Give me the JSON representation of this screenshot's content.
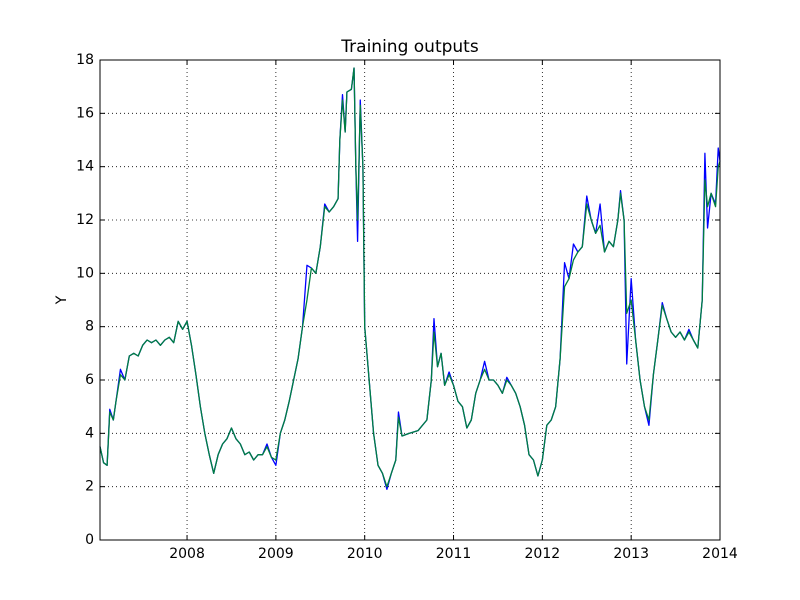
{
  "chart_data": {
    "type": "line",
    "title": "Training outputs",
    "ylabel": "Y",
    "x": [
      2007.02,
      2007.06,
      2007.1,
      2007.13,
      2007.17,
      2007.2,
      2007.25,
      2007.3,
      2007.35,
      2007.4,
      2007.45,
      2007.5,
      2007.55,
      2007.6,
      2007.65,
      2007.7,
      2007.75,
      2007.8,
      2007.85,
      2007.9,
      2007.95,
      2008.0,
      2008.05,
      2008.1,
      2008.15,
      2008.2,
      2008.25,
      2008.3,
      2008.35,
      2008.4,
      2008.45,
      2008.5,
      2008.55,
      2008.6,
      2008.65,
      2008.7,
      2008.75,
      2008.8,
      2008.85,
      2008.9,
      2008.95,
      2009.0,
      2009.05,
      2009.1,
      2009.15,
      2009.2,
      2009.25,
      2009.3,
      2009.35,
      2009.4,
      2009.45,
      2009.5,
      2009.55,
      2009.6,
      2009.65,
      2009.7,
      2009.72,
      2009.75,
      2009.78,
      2009.8,
      2009.85,
      2009.88,
      2009.9,
      2009.92,
      2009.95,
      2009.98,
      2010.0,
      2010.05,
      2010.1,
      2010.15,
      2010.2,
      2010.25,
      2010.3,
      2010.35,
      2010.38,
      2010.42,
      2010.5,
      2010.6,
      2010.7,
      2010.75,
      2010.78,
      2010.82,
      2010.86,
      2010.9,
      2010.95,
      2011.0,
      2011.05,
      2011.1,
      2011.15,
      2011.2,
      2011.25,
      2011.3,
      2011.35,
      2011.4,
      2011.45,
      2011.5,
      2011.55,
      2011.6,
      2011.65,
      2011.7,
      2011.75,
      2011.8,
      2011.85,
      2011.9,
      2011.95,
      2012.0,
      2012.05,
      2012.1,
      2012.15,
      2012.2,
      2012.25,
      2012.3,
      2012.35,
      2012.4,
      2012.45,
      2012.5,
      2012.55,
      2012.6,
      2012.65,
      2012.7,
      2012.75,
      2012.8,
      2012.85,
      2012.88,
      2012.92,
      2012.95,
      2013.0,
      2013.05,
      2013.1,
      2013.15,
      2013.2,
      2013.25,
      2013.3,
      2013.35,
      2013.4,
      2013.45,
      2013.5,
      2013.55,
      2013.6,
      2013.65,
      2013.7,
      2013.75,
      2013.8,
      2013.83,
      2013.86,
      2013.9,
      2013.95,
      2013.98,
      2014.0
    ],
    "series": [
      {
        "color": "#0000ff",
        "values": [
          3.5,
          2.9,
          2.8,
          4.9,
          4.5,
          5.2,
          6.4,
          6.0,
          6.9,
          7.0,
          6.9,
          7.3,
          7.5,
          7.4,
          7.5,
          7.3,
          7.5,
          7.6,
          7.4,
          8.2,
          7.9,
          8.2,
          7.3,
          6.2,
          5.0,
          4.0,
          3.2,
          2.5,
          3.2,
          3.6,
          3.8,
          4.2,
          3.8,
          3.6,
          3.2,
          3.3,
          3.0,
          3.2,
          3.2,
          3.6,
          3.1,
          2.8,
          4.0,
          4.5,
          5.2,
          6.0,
          6.8,
          8.0,
          10.3,
          10.2,
          10.0,
          11.0,
          12.6,
          12.3,
          12.5,
          12.8,
          15.0,
          16.7,
          15.3,
          16.8,
          16.9,
          17.7,
          14.0,
          11.2,
          16.5,
          14.0,
          8.0,
          6.0,
          4.0,
          2.8,
          2.5,
          1.9,
          2.5,
          3.0,
          4.8,
          3.9,
          4.0,
          4.1,
          4.5,
          6.0,
          8.3,
          6.5,
          7.0,
          5.8,
          6.3,
          5.8,
          5.2,
          5.0,
          4.2,
          4.5,
          5.5,
          6.0,
          6.7,
          6.0,
          6.0,
          5.8,
          5.5,
          6.1,
          5.8,
          5.5,
          5.0,
          4.3,
          3.2,
          3.0,
          2.4,
          3.0,
          4.3,
          4.5,
          5.0,
          6.8,
          10.4,
          9.8,
          11.1,
          10.8,
          11.0,
          12.9,
          12.0,
          11.5,
          12.6,
          10.8,
          11.2,
          11.0,
          12.0,
          13.1,
          12.0,
          6.6,
          9.8,
          7.5,
          6.0,
          5.0,
          4.3,
          6.2,
          7.5,
          8.9,
          8.3,
          7.8,
          7.6,
          7.8,
          7.5,
          7.9,
          7.5,
          7.2,
          9.0,
          14.5,
          11.7,
          13.0,
          12.6,
          14.7,
          14.2
        ]
      },
      {
        "color": "#007f3f",
        "values": [
          3.5,
          2.9,
          2.8,
          4.8,
          4.5,
          5.2,
          6.2,
          6.0,
          6.9,
          7.0,
          6.9,
          7.3,
          7.5,
          7.4,
          7.5,
          7.3,
          7.5,
          7.6,
          7.4,
          8.2,
          7.9,
          8.2,
          7.3,
          6.2,
          5.0,
          4.0,
          3.2,
          2.5,
          3.2,
          3.6,
          3.8,
          4.2,
          3.8,
          3.6,
          3.2,
          3.3,
          3.0,
          3.2,
          3.2,
          3.5,
          3.1,
          3.0,
          4.0,
          4.5,
          5.2,
          6.0,
          6.8,
          8.0,
          9.0,
          10.2,
          10.0,
          11.0,
          12.5,
          12.3,
          12.5,
          12.8,
          15.0,
          16.5,
          15.3,
          16.8,
          16.9,
          17.7,
          14.0,
          12.0,
          16.3,
          14.0,
          8.0,
          6.0,
          4.0,
          2.8,
          2.5,
          2.0,
          2.5,
          3.0,
          4.6,
          3.9,
          4.0,
          4.1,
          4.5,
          6.0,
          7.8,
          6.5,
          7.0,
          5.8,
          6.2,
          5.8,
          5.2,
          5.0,
          4.2,
          4.5,
          5.5,
          6.0,
          6.4,
          6.0,
          6.0,
          5.8,
          5.5,
          6.0,
          5.8,
          5.5,
          5.0,
          4.3,
          3.2,
          3.0,
          2.4,
          3.0,
          4.3,
          4.5,
          5.0,
          6.8,
          9.5,
          9.8,
          10.5,
          10.8,
          11.0,
          12.6,
          12.0,
          11.5,
          11.8,
          10.8,
          11.2,
          11.0,
          12.0,
          13.0,
          12.0,
          8.5,
          9.0,
          7.5,
          6.0,
          5.0,
          4.5,
          6.2,
          7.5,
          8.8,
          8.3,
          7.8,
          7.6,
          7.8,
          7.5,
          7.8,
          7.5,
          7.2,
          9.0,
          13.5,
          12.5,
          13.0,
          12.5,
          14.0,
          14.2
        ]
      }
    ],
    "xlim": [
      2007.02,
      2014
    ],
    "xticks": [
      2008,
      2009,
      2010,
      2011,
      2012,
      2013,
      2014
    ],
    "ylim": [
      0,
      18
    ],
    "yticks": [
      0,
      2,
      4,
      6,
      8,
      10,
      12,
      14,
      16,
      18
    ],
    "grid": true
  }
}
